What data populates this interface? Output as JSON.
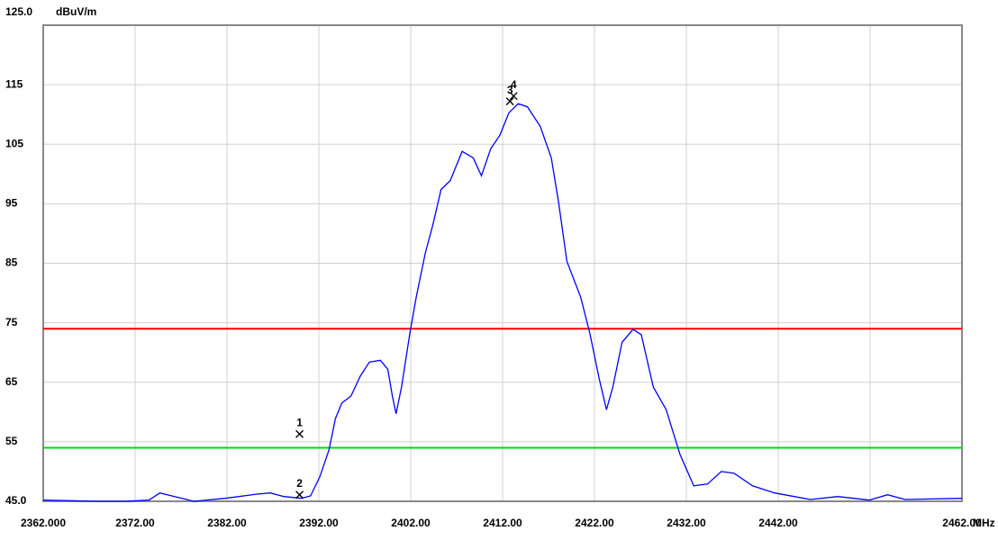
{
  "chart_data": {
    "type": "line",
    "y_unit": "dBuV/m",
    "x_unit": "MHz",
    "xlim": [
      2362,
      2462
    ],
    "ylim": [
      45,
      125
    ],
    "yticks": [
      {
        "value": 45,
        "label": "45.0"
      },
      55,
      65,
      75,
      85,
      95,
      105,
      115,
      {
        "value": 125,
        "label": "125.0"
      }
    ],
    "xticks": [
      {
        "value": 2362,
        "label": "2362.000"
      },
      {
        "value": 2372,
        "label": "2372.00"
      },
      {
        "value": 2382,
        "label": "2382.00"
      },
      {
        "value": 2392,
        "label": "2392.00"
      },
      {
        "value": 2402,
        "label": "2402.00"
      },
      {
        "value": 2412,
        "label": "2412.00"
      },
      {
        "value": 2422,
        "label": "2422.00"
      },
      {
        "value": 2432,
        "label": "2432.00"
      },
      {
        "value": 2442,
        "label": "2442.00"
      },
      {
        "value": 2452,
        "label": null
      },
      {
        "value": 2462,
        "label": "2462.00"
      }
    ],
    "grid": true,
    "x": [
      2362,
      2368,
      2371,
      2373.5,
      2374.7,
      2376,
      2378.4,
      2381.8,
      2385.2,
      2386.7,
      2388.2,
      2390.1,
      2391.1,
      2392.1,
      2393.1,
      2393.8,
      2394.5,
      2395.5,
      2396.5,
      2397.5,
      2398.7,
      2399.5,
      2400,
      2400.4,
      2401,
      2401.9,
      2402.6,
      2403.6,
      2404.4,
      2405.3,
      2406.3,
      2407.6,
      2408.8,
      2409.7,
      2410.7,
      2411.7,
      2412.7,
      2413.7,
      2414.7,
      2416.1,
      2417.3,
      2418.1,
      2419,
      2420.5,
      2421.5,
      2422.5,
      2423.3,
      2424,
      2425,
      2426.2,
      2427.1,
      2428.4,
      2429.8,
      2431.3,
      2432.8,
      2434.3,
      2435.8,
      2437.2,
      2439.2,
      2441.6,
      2445.5,
      2448.5,
      2451.9,
      2453.9,
      2455.8,
      2462
    ],
    "series": [
      {
        "color": "#0000ff",
        "values": [
          45.2,
          45,
          45,
          45.2,
          46.4,
          45.9,
          45,
          45.5,
          46.2,
          46.4,
          45.8,
          45.5,
          45.9,
          49.1,
          53.6,
          58.9,
          61.5,
          62.7,
          66,
          68.4,
          68.7,
          67.2,
          62.7,
          59.7,
          64.2,
          73.2,
          79.3,
          86.8,
          91.4,
          97.4,
          98.9,
          103.8,
          102.7,
          99.7,
          104.2,
          106.5,
          110.3,
          111.8,
          111.3,
          108,
          102.7,
          95.2,
          85.3,
          79.3,
          73.2,
          65.7,
          60.4,
          64.2,
          71.7,
          73.9,
          73,
          64.2,
          60.4,
          52.9,
          47.6,
          47.9,
          50,
          49.7,
          47.6,
          46.4,
          45.3,
          45.8,
          45.2,
          46.1,
          45.3,
          45.5
        ]
      }
    ],
    "limit_lines": [
      {
        "value": 74,
        "color": "#ff0000"
      },
      {
        "value": 54,
        "color": "#00dd00"
      }
    ],
    "markers": [
      {
        "label": "1",
        "x": 2389.9,
        "y": 56.3
      },
      {
        "label": "2",
        "x": 2389.9,
        "y": 46.1
      },
      {
        "label": "3",
        "x": 2412.8,
        "y": 112.2
      },
      {
        "label": "4",
        "x": 2413.2,
        "y": 113.1
      }
    ]
  }
}
